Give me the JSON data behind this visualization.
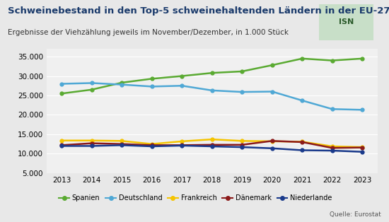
{
  "title": "Schweinebestand in den Top-5 schweinehaltenden Ländern in der EU-27",
  "subtitle": "Ergebnisse der Viehzählung jeweils im November/Dezember, in 1.000 Stück",
  "years": [
    2013,
    2014,
    2015,
    2016,
    2017,
    2018,
    2019,
    2020,
    2021,
    2022,
    2023
  ],
  "series": {
    "Spanien": [
      25500,
      26500,
      28300,
      29300,
      30000,
      30800,
      31200,
      32800,
      34500,
      34000,
      34500
    ],
    "Deutschland": [
      28000,
      28200,
      27800,
      27300,
      27500,
      26300,
      25900,
      26000,
      23700,
      21500,
      21300
    ],
    "Frankreich": [
      13400,
      13400,
      13300,
      12500,
      13200,
      13700,
      13300,
      13200,
      13100,
      11900,
      11700
    ],
    "Dänemark": [
      12200,
      12700,
      12500,
      12200,
      12200,
      12300,
      12300,
      13300,
      13000,
      11500,
      11600
    ],
    "Niederlande": [
      12000,
      12000,
      12200,
      11900,
      12100,
      11900,
      11700,
      11400,
      10900,
      10800,
      10500
    ]
  },
  "colors": {
    "Spanien": "#5aaa32",
    "Deutschland": "#4fa8d5",
    "Frankreich": "#f5c400",
    "Dänemark": "#8b1a1a",
    "Niederlande": "#1a3a8b"
  },
  "ylim": [
    5000,
    37000
  ],
  "yticks": [
    5000,
    10000,
    15000,
    20000,
    25000,
    30000,
    35000
  ],
  "background_color": "#e8e8e8",
  "plot_bg_color": "#f0f0f0",
  "title_bar_color": "#1a5276",
  "source_text": "Quelle: Eurostat"
}
